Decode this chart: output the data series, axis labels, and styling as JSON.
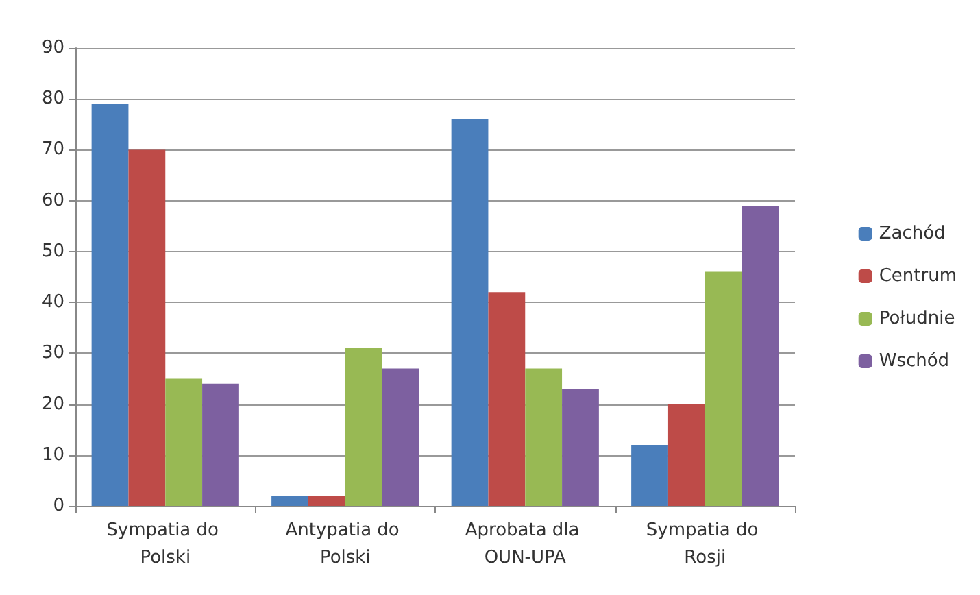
{
  "chart_data": {
    "type": "bar",
    "categories": [
      "Sympatia do Polski",
      "Antypatia do Polski",
      "Aprobata dla OUN-UPA",
      "Sympatia do Rosji"
    ],
    "series": [
      {
        "name": "Zachód",
        "color": "#4a7ebb",
        "values": [
          79,
          2,
          76,
          12
        ]
      },
      {
        "name": "Centrum",
        "color": "#be4b48",
        "values": [
          70,
          2,
          42,
          20
        ]
      },
      {
        "name": "Południe",
        "color": "#98b954",
        "values": [
          25,
          31,
          27,
          46
        ]
      },
      {
        "name": "Wschód",
        "color": "#7d60a0",
        "values": [
          24,
          27,
          23,
          59
        ]
      }
    ],
    "ylim": [
      0,
      90
    ],
    "yticks": [
      0,
      10,
      20,
      30,
      40,
      50,
      60,
      70,
      80,
      90
    ],
    "grid": "y",
    "legend": "right"
  }
}
